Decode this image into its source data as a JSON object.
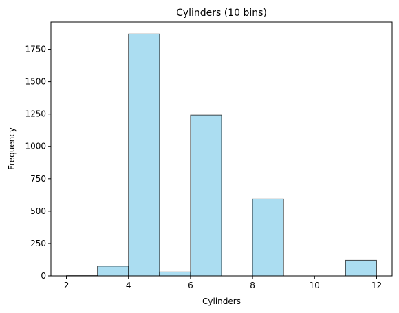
{
  "chart_data": {
    "type": "bar",
    "title": "Cylinders (10 bins)",
    "xlabel": "Cylinders",
    "ylabel": "Frequency",
    "bin_edges": [
      2,
      3,
      4,
      5,
      6,
      7,
      8,
      9,
      10,
      11,
      12
    ],
    "values": [
      2,
      75,
      1868,
      30,
      1242,
      0,
      593,
      0,
      0,
      120
    ],
    "xlim": [
      1.5,
      12.5
    ],
    "ylim": [
      0,
      1960
    ],
    "x_ticks": [
      2,
      4,
      6,
      8,
      10,
      12
    ],
    "y_ticks": [
      0,
      250,
      500,
      750,
      1000,
      1250,
      1500,
      1750
    ],
    "grid": false,
    "bar_fill": "#87ceeb",
    "bar_fill_opacity": 0.7,
    "bar_edge": "#000000"
  }
}
